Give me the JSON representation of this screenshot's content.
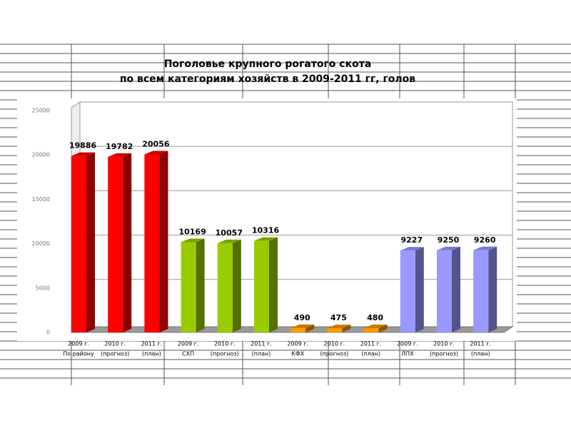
{
  "chart_data": {
    "type": "bar3d",
    "title": [
      "Поголовье крупного рогатого скота",
      "по всем категориям хозяйств в 2009-2011 гг,  голов"
    ],
    "categories": [
      [
        "2009 г.",
        "По району"
      ],
      [
        "2010 г.",
        "(прогноз)"
      ],
      [
        "2011 г.",
        "(план)"
      ],
      [
        "2009 г.",
        "СХП"
      ],
      [
        "2010 г.",
        "(прогноз)"
      ],
      [
        "2011 г.",
        "(план)"
      ],
      [
        "2009 г.",
        "КФХ"
      ],
      [
        "2010 г.",
        "(прогноз)"
      ],
      [
        "2011 г.",
        "(план)"
      ],
      [
        "2009 г.",
        "ЛПХ"
      ],
      [
        "2010 г.",
        "(прогноз)"
      ],
      [
        "2011 г.",
        "(план)"
      ]
    ],
    "values": [
      19886,
      19782,
      20056,
      10169,
      10057,
      10316,
      490,
      475,
      480,
      9227,
      9250,
      9260
    ],
    "colors": [
      "#ff0000",
      "#ff0000",
      "#ff0000",
      "#99cc00",
      "#99cc00",
      "#99cc00",
      "#ff9900",
      "#ff9900",
      "#ff9900",
      "#9999ff",
      "#9999ff",
      "#9999ff"
    ],
    "ylim": [
      0,
      25000
    ],
    "yticks": [
      0,
      5000,
      10000,
      15000,
      20000,
      25000
    ],
    "grid": true
  }
}
